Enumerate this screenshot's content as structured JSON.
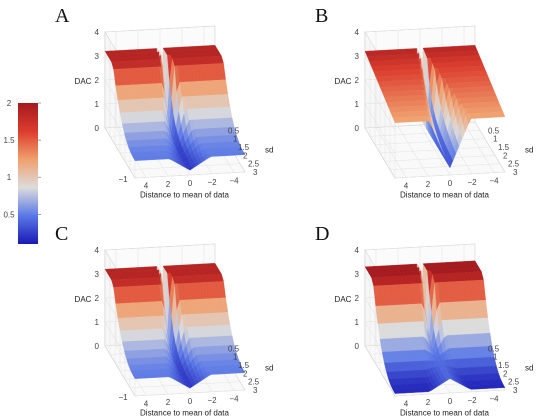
{
  "colorbar": {
    "ticks": [
      {
        "label": "2",
        "value": 2
      },
      {
        "label": "1.5",
        "value": 1.5
      },
      {
        "label": "1",
        "value": 1
      },
      {
        "label": "0.5",
        "value": 0.5
      }
    ],
    "range": [
      0.1,
      2
    ],
    "colors": [
      "#1919b4",
      "#5a78e6",
      "#dcdcdc",
      "#f0a06e",
      "#dc3c2d",
      "#a51a1e"
    ]
  },
  "chart_data": [
    {
      "type": "surface3d",
      "panel_label": "A",
      "zlabel": "DAC",
      "xlabel": "Distance to mean of data",
      "ylabel": "sd",
      "z_ticks": [
        "0",
        "1",
        "2",
        "3",
        "4"
      ],
      "x_ticks": [
        "4",
        "2",
        "0",
        "−2",
        "−4"
      ],
      "y_ticks": [
        "0.5",
        "1",
        "1.5",
        "2",
        "2.5",
        "3"
      ],
      "extra_x_tick": "−1",
      "surface": {
        "low_level": 0.72,
        "high_level": 3.2,
        "notch_min": 0.2,
        "variant": "cross"
      }
    },
    {
      "type": "surface3d",
      "panel_label": "B",
      "zlabel": "DAC",
      "xlabel": "Distance to mean of data",
      "ylabel": "sd",
      "z_ticks": [
        "0",
        "1",
        "2",
        "3",
        "4"
      ],
      "x_ticks": [
        "4",
        "2",
        "0",
        "−2",
        "−4"
      ],
      "y_ticks": [
        "0.5",
        "1",
        "1.5",
        "2",
        "2.5",
        "3"
      ],
      "extra_x_tick": "",
      "surface": {
        "low_level": 2.3,
        "high_level": 3.3,
        "notch_min": 0.3,
        "variant": "funnel"
      }
    },
    {
      "type": "surface3d",
      "panel_label": "C",
      "zlabel": "DAC",
      "xlabel": "Distance to mean of data",
      "ylabel": "sd",
      "z_ticks": [
        "0",
        "1",
        "2",
        "3",
        "4"
      ],
      "x_ticks": [
        "4",
        "2",
        "0",
        "−2",
        "−4"
      ],
      "y_ticks": [
        "0.5",
        "1",
        "1.5",
        "2",
        "2.5",
        "3"
      ],
      "extra_x_tick": "−1",
      "surface": {
        "low_level": 0.72,
        "high_level": 3.2,
        "notch_min": 0.2,
        "variant": "cross"
      }
    },
    {
      "type": "surface3d",
      "panel_label": "D",
      "zlabel": "DAC",
      "xlabel": "Distance to mean of data",
      "ylabel": "sd",
      "z_ticks": [
        "0",
        "1",
        "2",
        "3",
        "4"
      ],
      "x_ticks": [
        "4",
        "2",
        "0",
        "−2",
        "−4"
      ],
      "y_ticks": [
        "0.5",
        "1",
        "1.5",
        "2",
        "2.5",
        "3"
      ],
      "extra_x_tick": "",
      "surface": {
        "low_level": 0.1,
        "high_level": 3.3,
        "notch_min": 0.6,
        "variant": "flat"
      }
    }
  ]
}
